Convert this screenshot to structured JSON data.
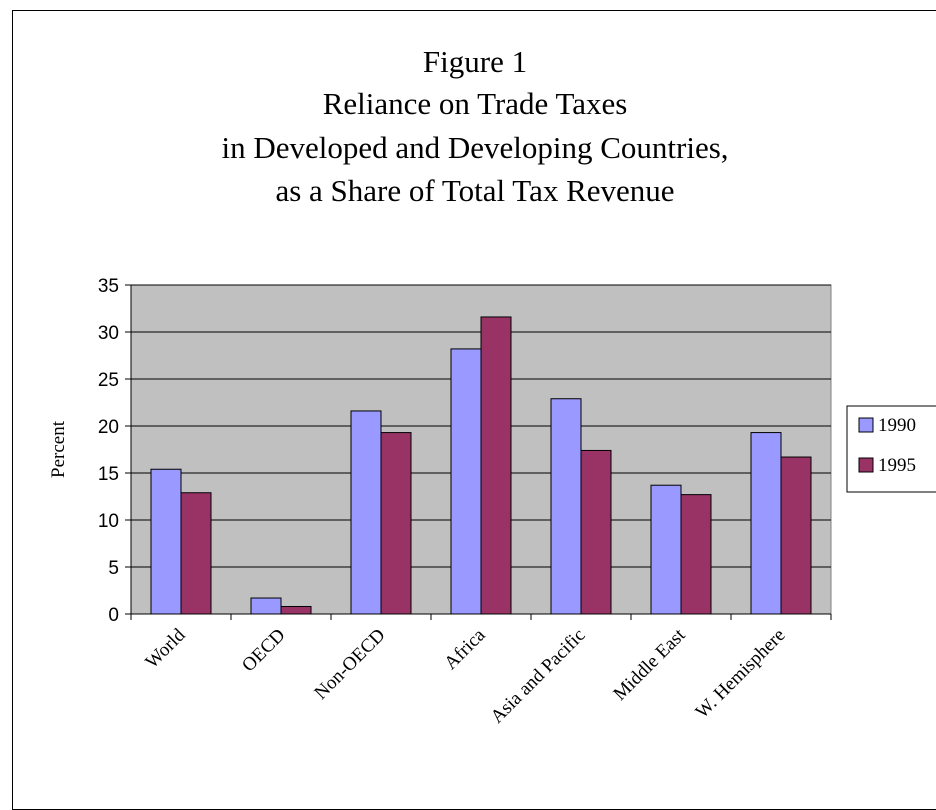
{
  "chart_data": {
    "type": "bar",
    "title": [
      "Figure 1",
      "Reliance on Trade Taxes",
      "in Developed and Developing Countries,",
      "as a Share of Total Tax Revenue"
    ],
    "xlabel": "",
    "ylabel": "Percent",
    "categories": [
      "World",
      "OECD",
      "Non-OECD",
      "Africa",
      "Asia and Pacific",
      "Middle East",
      "W. Hemisphere"
    ],
    "series": [
      {
        "name": "1990",
        "color": "#9999ff",
        "values": [
          15.4,
          1.7,
          21.6,
          28.2,
          22.9,
          13.7,
          19.3
        ]
      },
      {
        "name": "1995",
        "color": "#993366",
        "values": [
          12.9,
          0.8,
          19.3,
          31.6,
          17.4,
          12.7,
          16.7
        ]
      }
    ],
    "ylim": [
      0,
      35
    ],
    "yticks": [
      0,
      5,
      10,
      15,
      20,
      25,
      30,
      35
    ],
    "grid": true,
    "plot_background": "#c0c0c0",
    "legend_position": "right"
  }
}
